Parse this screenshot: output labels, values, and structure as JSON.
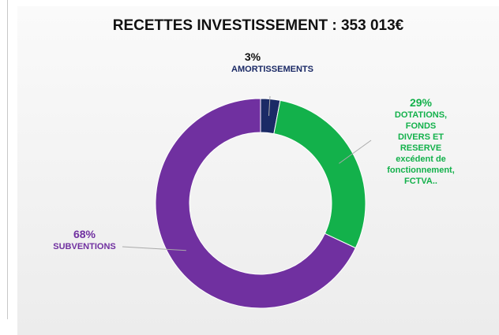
{
  "chart_data": {
    "type": "donut",
    "title": "RECETTES INVESTISSEMENT : 353 013€",
    "categories": [
      "AMORTISSEMENTS",
      "DOTATIONS, FONDS\nDIVERS  ET RESERVE\nexcédent de\nfonctionnement,\nFCTVA..",
      "SUBVENTIONS"
    ],
    "values": [
      3,
      29,
      68
    ],
    "value_labels": [
      "3%",
      "29%",
      "68%"
    ],
    "colors": [
      "#1b2a66",
      "#13b14b",
      "#7030a0"
    ]
  }
}
